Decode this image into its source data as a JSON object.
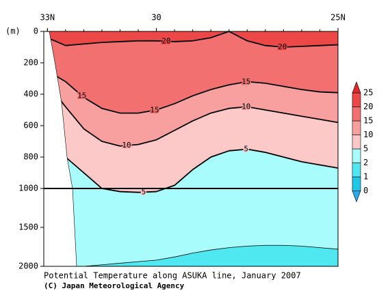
{
  "chart_data": {
    "type": "contour",
    "title": "Potential Temperature along ASUKA line, January 2007",
    "subtitle": "(C) Japan Meteorological Agency",
    "y_label": "(m)",
    "x": [
      33,
      32.5,
      32,
      31.5,
      31,
      30.5,
      30,
      29.5,
      29,
      28.5,
      28,
      27.5,
      27,
      26.5,
      26,
      25.5,
      25
    ],
    "xlim": [
      33.1,
      25
    ],
    "xticks": [
      {
        "value": 33,
        "label": "33N"
      },
      30,
      {
        "value": 25,
        "label": "25N"
      }
    ],
    "ylim": [
      0,
      2000
    ],
    "yticks": [
      0,
      200,
      400,
      600,
      800,
      1000,
      1500,
      2000
    ],
    "y_break": 1000,
    "contours": [
      {
        "level": 20,
        "depths": [
          40,
          90,
          80,
          70,
          65,
          60,
          60,
          65,
          60,
          40,
          0,
          60,
          90,
          100,
          95,
          90,
          85
        ]
      },
      {
        "level": 15,
        "depths": [
          250,
          320,
          420,
          490,
          520,
          520,
          500,
          460,
          410,
          370,
          340,
          320,
          330,
          350,
          370,
          385,
          390
        ]
      },
      {
        "level": 10,
        "depths": [
          330,
          480,
          620,
          700,
          730,
          720,
          690,
          630,
          570,
          520,
          490,
          480,
          500,
          520,
          540,
          560,
          580
        ]
      },
      {
        "level": 5,
        "depths": [
          650,
          800,
          900,
          1000,
          1040,
          1050,
          1040,
          980,
          880,
          800,
          760,
          750,
          770,
          800,
          830,
          850,
          870
        ]
      },
      {
        "level": 2,
        "depths": [
          null,
          null,
          2000,
          1980,
          1960,
          1940,
          1920,
          1880,
          1830,
          1790,
          1760,
          1740,
          1730,
          1730,
          1740,
          1760,
          1780
        ]
      }
    ],
    "colorbar": {
      "levels": [
        0,
        1,
        2,
        5,
        10,
        15,
        20,
        25
      ],
      "colors": [
        "#2aa8f0",
        "#20c8e8",
        "#50e8f0",
        "#a8fcfc",
        "#fcc8c8",
        "#f8a0a0",
        "#f27070",
        "#ec4848",
        "#e02828"
      ]
    }
  }
}
